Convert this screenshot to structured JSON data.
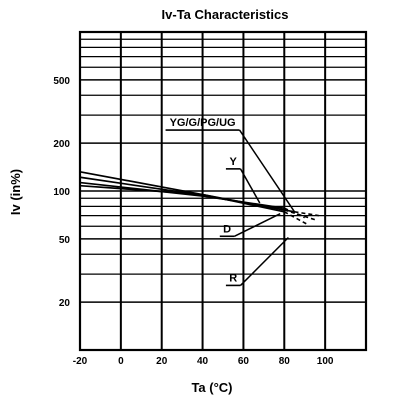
{
  "chart_data": {
    "type": "line",
    "title": "Iv-Ta Characteristics",
    "xlabel": "Ta (°C)",
    "ylabel": "Iv (in%)",
    "xlim": [
      -20,
      120
    ],
    "ylim": [
      10,
      1000
    ],
    "y_scale": "log",
    "grid": true,
    "x_ticks": [
      "-20",
      "0",
      "20",
      "40",
      "60",
      "80",
      "100"
    ],
    "y_ticks": [
      "500",
      "200",
      "100",
      "50",
      "20"
    ],
    "legend": "callout labels",
    "series": [
      {
        "name": "YG/G/PG/UG",
        "points": [
          [
            -20,
            122
          ],
          [
            40,
            94
          ],
          [
            85,
            74
          ]
        ],
        "dashed_points": [
          [
            85,
            74
          ],
          [
            97,
            70
          ]
        ]
      },
      {
        "name": "Y",
        "points": [
          [
            -20,
            108
          ],
          [
            40,
            95
          ],
          [
            80,
            76
          ]
        ],
        "dashed_points": [
          [
            80,
            76
          ],
          [
            95,
            66
          ]
        ]
      },
      {
        "name": "D",
        "points": [
          [
            -20,
            113
          ],
          [
            40,
            93
          ],
          [
            80,
            78
          ]
        ],
        "dashed_points": [
          [
            80,
            78
          ],
          [
            90,
            68
          ]
        ]
      },
      {
        "name": "R",
        "points": [
          [
            -20,
            132
          ],
          [
            40,
            95
          ],
          [
            80,
            74
          ]
        ],
        "dashed_points": [
          [
            80,
            74
          ],
          [
            92,
            61
          ]
        ]
      }
    ],
    "annotations": [
      {
        "text": "YG/G/PG/UG",
        "anchor": [
          40,
          256
        ],
        "target": [
          85,
          74
        ]
      },
      {
        "text": "Y",
        "anchor": [
          55,
          146
        ],
        "target": [
          68,
          84
        ]
      },
      {
        "text": "D",
        "anchor": [
          52,
          55
        ],
        "target": [
          78,
          72
        ]
      },
      {
        "text": "R",
        "anchor": [
          55,
          27
        ],
        "target": [
          82,
          51
        ]
      }
    ]
  }
}
